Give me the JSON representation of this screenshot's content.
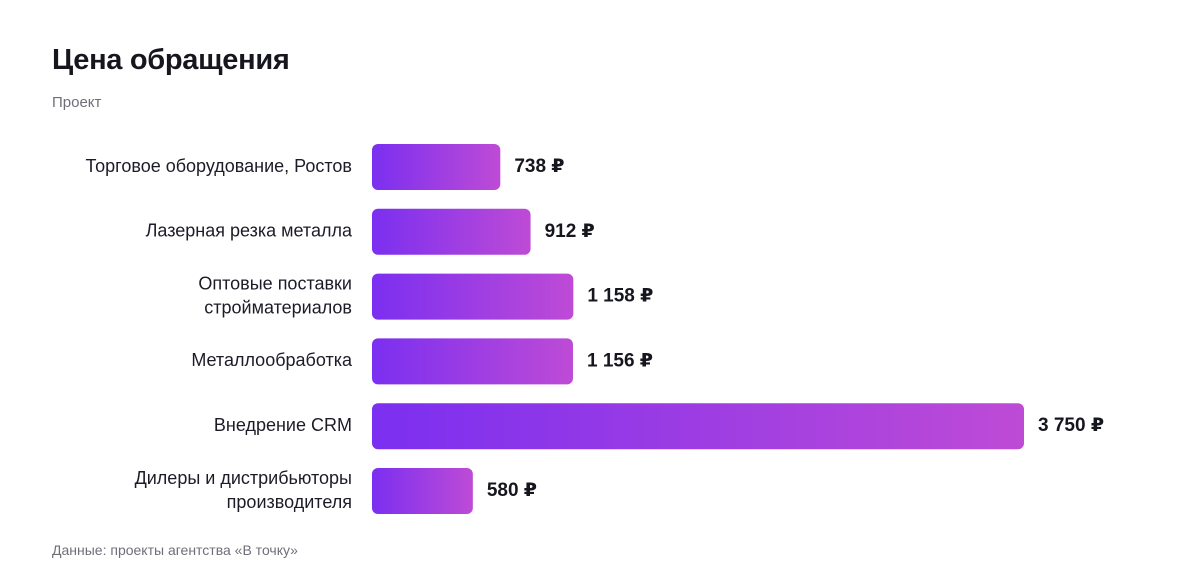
{
  "chart_data": {
    "type": "bar",
    "orientation": "horizontal",
    "title": "Цена обращения",
    "subtitle": "Проект",
    "source": "Данные: проекты агентства «В точку»",
    "currency": "₽",
    "categories": [
      [
        "Торговое оборудование, Ростов"
      ],
      [
        "Лазерная резка металла"
      ],
      [
        "Оптовые поставки",
        "стройматериалов"
      ],
      [
        "Металлообработка"
      ],
      [
        "Внедрение CRM"
      ],
      [
        "Дилеры и дистрибьюторы",
        "производителя"
      ]
    ],
    "values": [
      738,
      912,
      1158,
      1156,
      3750,
      580
    ],
    "value_labels": [
      "738 ₽",
      "912 ₽",
      "1 158 ₽",
      "1 156 ₽",
      "3 750 ₽",
      "580 ₽"
    ],
    "xlim": [
      0,
      3750
    ],
    "grid": false,
    "colors": {
      "gradient_start": "#7b2ff0",
      "gradient_end": "#be4bd6"
    }
  }
}
